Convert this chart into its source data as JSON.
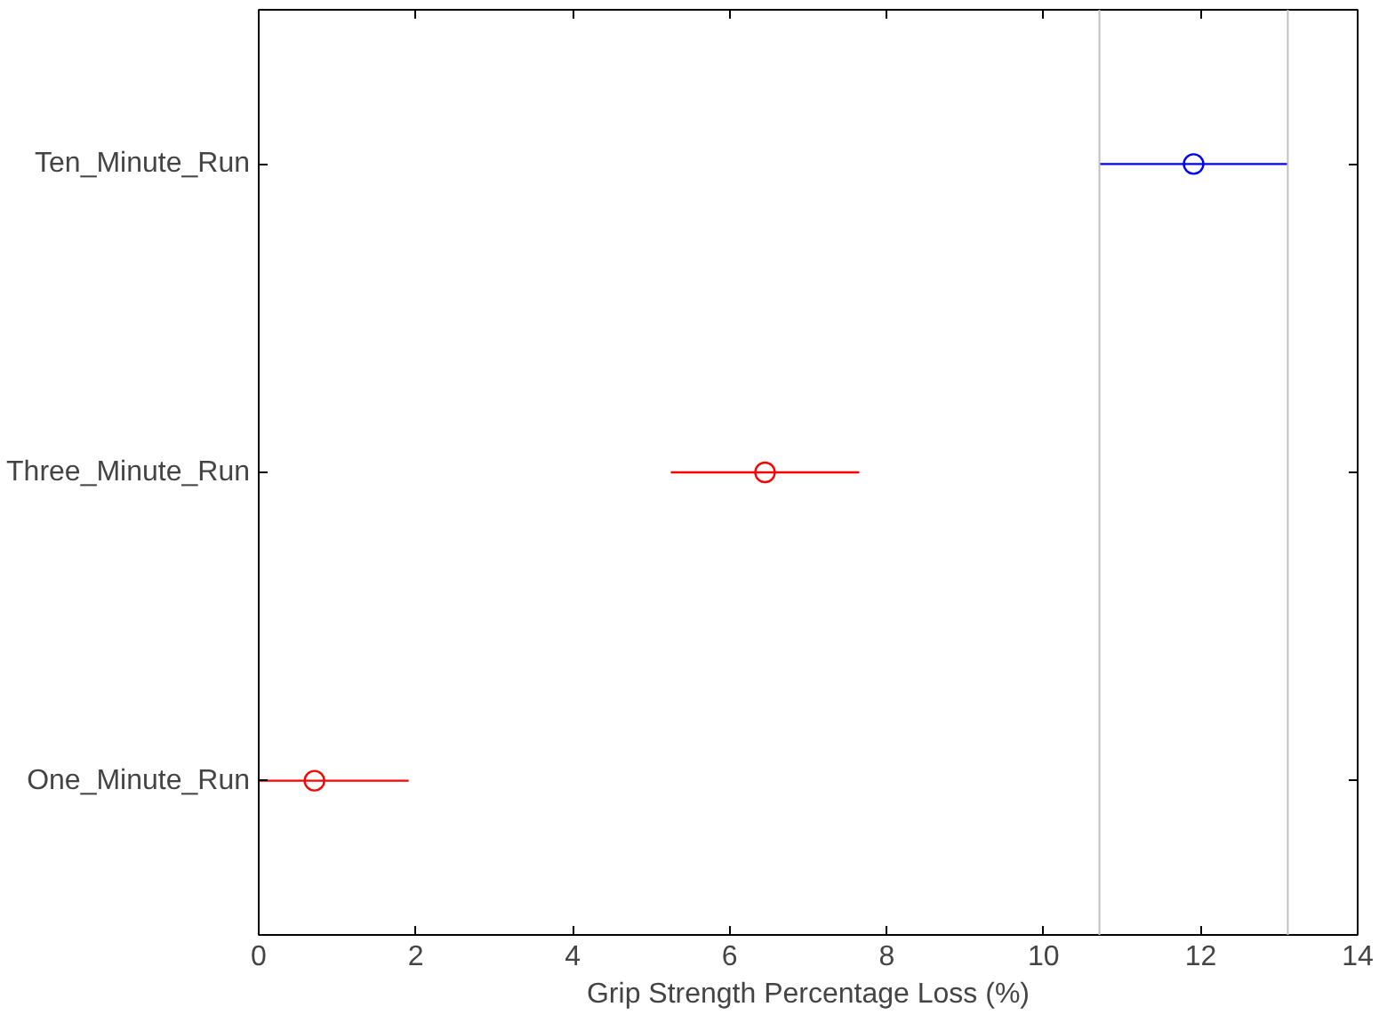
{
  "chart_data": {
    "type": "scatter",
    "orientation": "horizontal",
    "xlabel": "Grip Strength Percentage Loss (%)",
    "categories": [
      "Ten_Minute_Run",
      "Three_Minute_Run",
      "One_Minute_Run"
    ],
    "values": [
      11.91,
      6.45,
      0.71
    ],
    "errors": [
      [
        10.71,
        13.11
      ],
      [
        5.25,
        7.65
      ],
      [
        0,
        1.91
      ]
    ],
    "colors": [
      "#0000ff",
      "#ff0000",
      "#ff0000"
    ],
    "xlim": [
      0,
      14
    ],
    "xticks": [
      0,
      2,
      4,
      6,
      8,
      10,
      12,
      14
    ],
    "ref_lines": [
      {
        "axis": "x",
        "value": 10.71,
        "label": null,
        "color": "#c0c0c0"
      },
      {
        "axis": "x",
        "value": 13.11,
        "label": null,
        "color": "#c0c0c0"
      }
    ],
    "marker": "circle",
    "grid": false
  }
}
